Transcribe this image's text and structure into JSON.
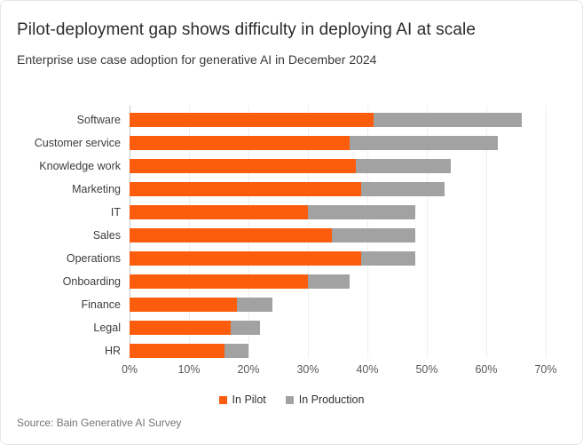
{
  "header": {
    "title": "Pilot-deployment gap shows difficulty in deploying AI at scale",
    "subtitle": "Enterprise use case adoption for generative AI in December 2024"
  },
  "footer": {
    "source": "Source: Bain Generative AI Survey"
  },
  "colors": {
    "pilot_orange": "#fb5d0d",
    "production_gray": "#a2a2a2",
    "gridline": "#efefef",
    "axis_line": "#c9c9c9"
  },
  "chart_data": {
    "type": "bar",
    "orientation": "horizontal",
    "stacked": true,
    "title": "Pilot-deployment gap shows difficulty in deploying AI at scale",
    "subtitle": "Enterprise use case adoption for generative AI in December 2024",
    "categories": [
      "Software",
      "Customer service",
      "Knowledge work",
      "Marketing",
      "IT",
      "Sales",
      "Operations",
      "Onboarding",
      "Finance",
      "Legal",
      "HR"
    ],
    "series": [
      {
        "name": "In Pilot",
        "color": "#fb5d0d",
        "values": [
          41,
          37,
          38,
          39,
          30,
          34,
          39,
          30,
          18,
          17,
          16
        ]
      },
      {
        "name": "In Production",
        "color": "#a2a2a2",
        "values": [
          25,
          25,
          16,
          14,
          18,
          14,
          9,
          7,
          6,
          5,
          4
        ]
      }
    ],
    "stacked_totals": [
      66,
      62,
      54,
      53,
      48,
      48,
      48,
      37,
      24,
      22,
      20
    ],
    "x_ticks": [
      "0%",
      "10%",
      "20%",
      "30%",
      "40%",
      "50%",
      "60%",
      "70%"
    ],
    "xlim": [
      0,
      70
    ],
    "xlabel": "",
    "ylabel": "",
    "grid": "vertical",
    "legend_position": "bottom"
  }
}
